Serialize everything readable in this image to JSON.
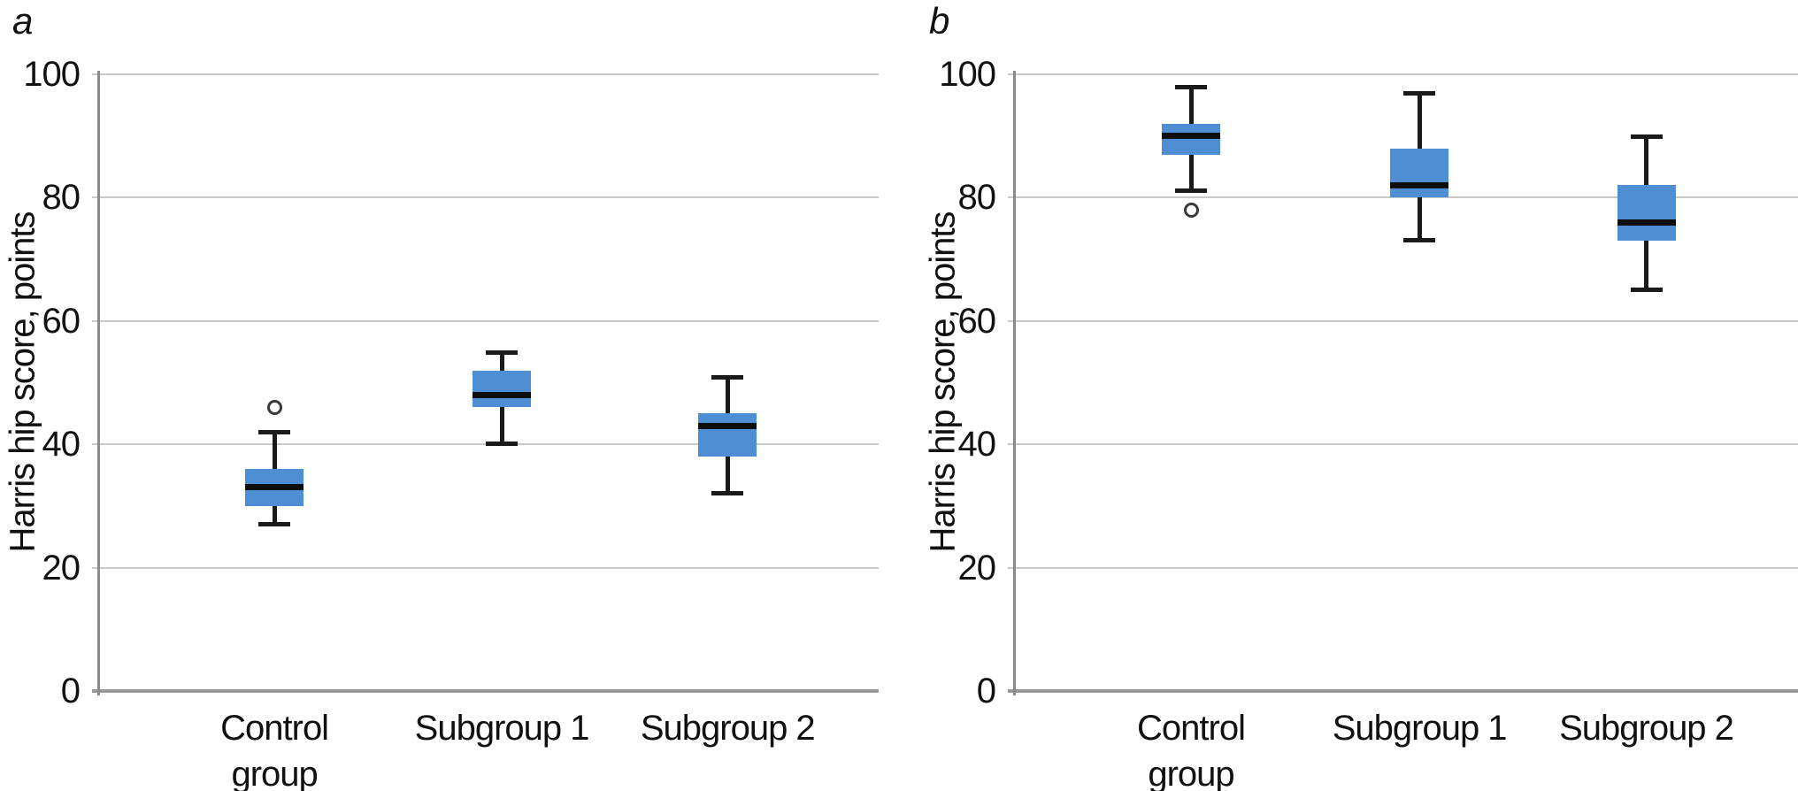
{
  "figure_title": "",
  "colors": {
    "background": "#ffffff",
    "text": "#111111",
    "box_fill": "#4d8fd2",
    "median_line": "#0e0e0e",
    "whisker": "#1a1a1a",
    "gridline": "#c9c9c9",
    "y_axis": "#8a8a8a",
    "x_baseline": "#999999",
    "outlier_ring": "#3a3a3a"
  },
  "chart_data": [
    {
      "type": "box",
      "panel_label": "a",
      "title": "",
      "xlabel": "",
      "ylabel": "Harris hip score, points",
      "categories": [
        "Control\ngroup",
        "Subgroup 1",
        "Subgroup 2"
      ],
      "ylim": [
        0,
        100
      ],
      "yticks": [
        0,
        20,
        40,
        60,
        80,
        100
      ],
      "grid": true,
      "legend": false,
      "series": [
        {
          "category": "Control group",
          "whisker_low": 27,
          "q1": 30,
          "median": 33,
          "q3": 36,
          "whisker_high": 42,
          "outliers": [
            46
          ]
        },
        {
          "category": "Subgroup 1",
          "whisker_low": 40,
          "q1": 46,
          "median": 48,
          "q3": 52,
          "whisker_high": 55,
          "outliers": []
        },
        {
          "category": "Subgroup 2",
          "whisker_low": 32,
          "q1": 38,
          "median": 43,
          "q3": 45,
          "whisker_high": 51,
          "outliers": []
        }
      ]
    },
    {
      "type": "box",
      "panel_label": "b",
      "title": "",
      "xlabel": "",
      "ylabel": "Harris hip score, points",
      "categories": [
        "Control\ngroup",
        "Subgroup 1",
        "Subgroup 2"
      ],
      "ylim": [
        0,
        100
      ],
      "yticks": [
        0,
        20,
        40,
        60,
        80,
        100
      ],
      "grid": true,
      "legend": false,
      "series": [
        {
          "category": "Control group",
          "whisker_low": 81,
          "q1": 87,
          "median": 90,
          "q3": 92,
          "whisker_high": 98,
          "outliers": [
            78
          ]
        },
        {
          "category": "Subgroup 1",
          "whisker_low": 73,
          "q1": 80,
          "median": 82,
          "q3": 88,
          "whisker_high": 97,
          "outliers": []
        },
        {
          "category": "Subgroup 2",
          "whisker_low": 65,
          "q1": 73,
          "median": 76,
          "q3": 82,
          "whisker_high": 90,
          "outliers": []
        }
      ]
    }
  ]
}
